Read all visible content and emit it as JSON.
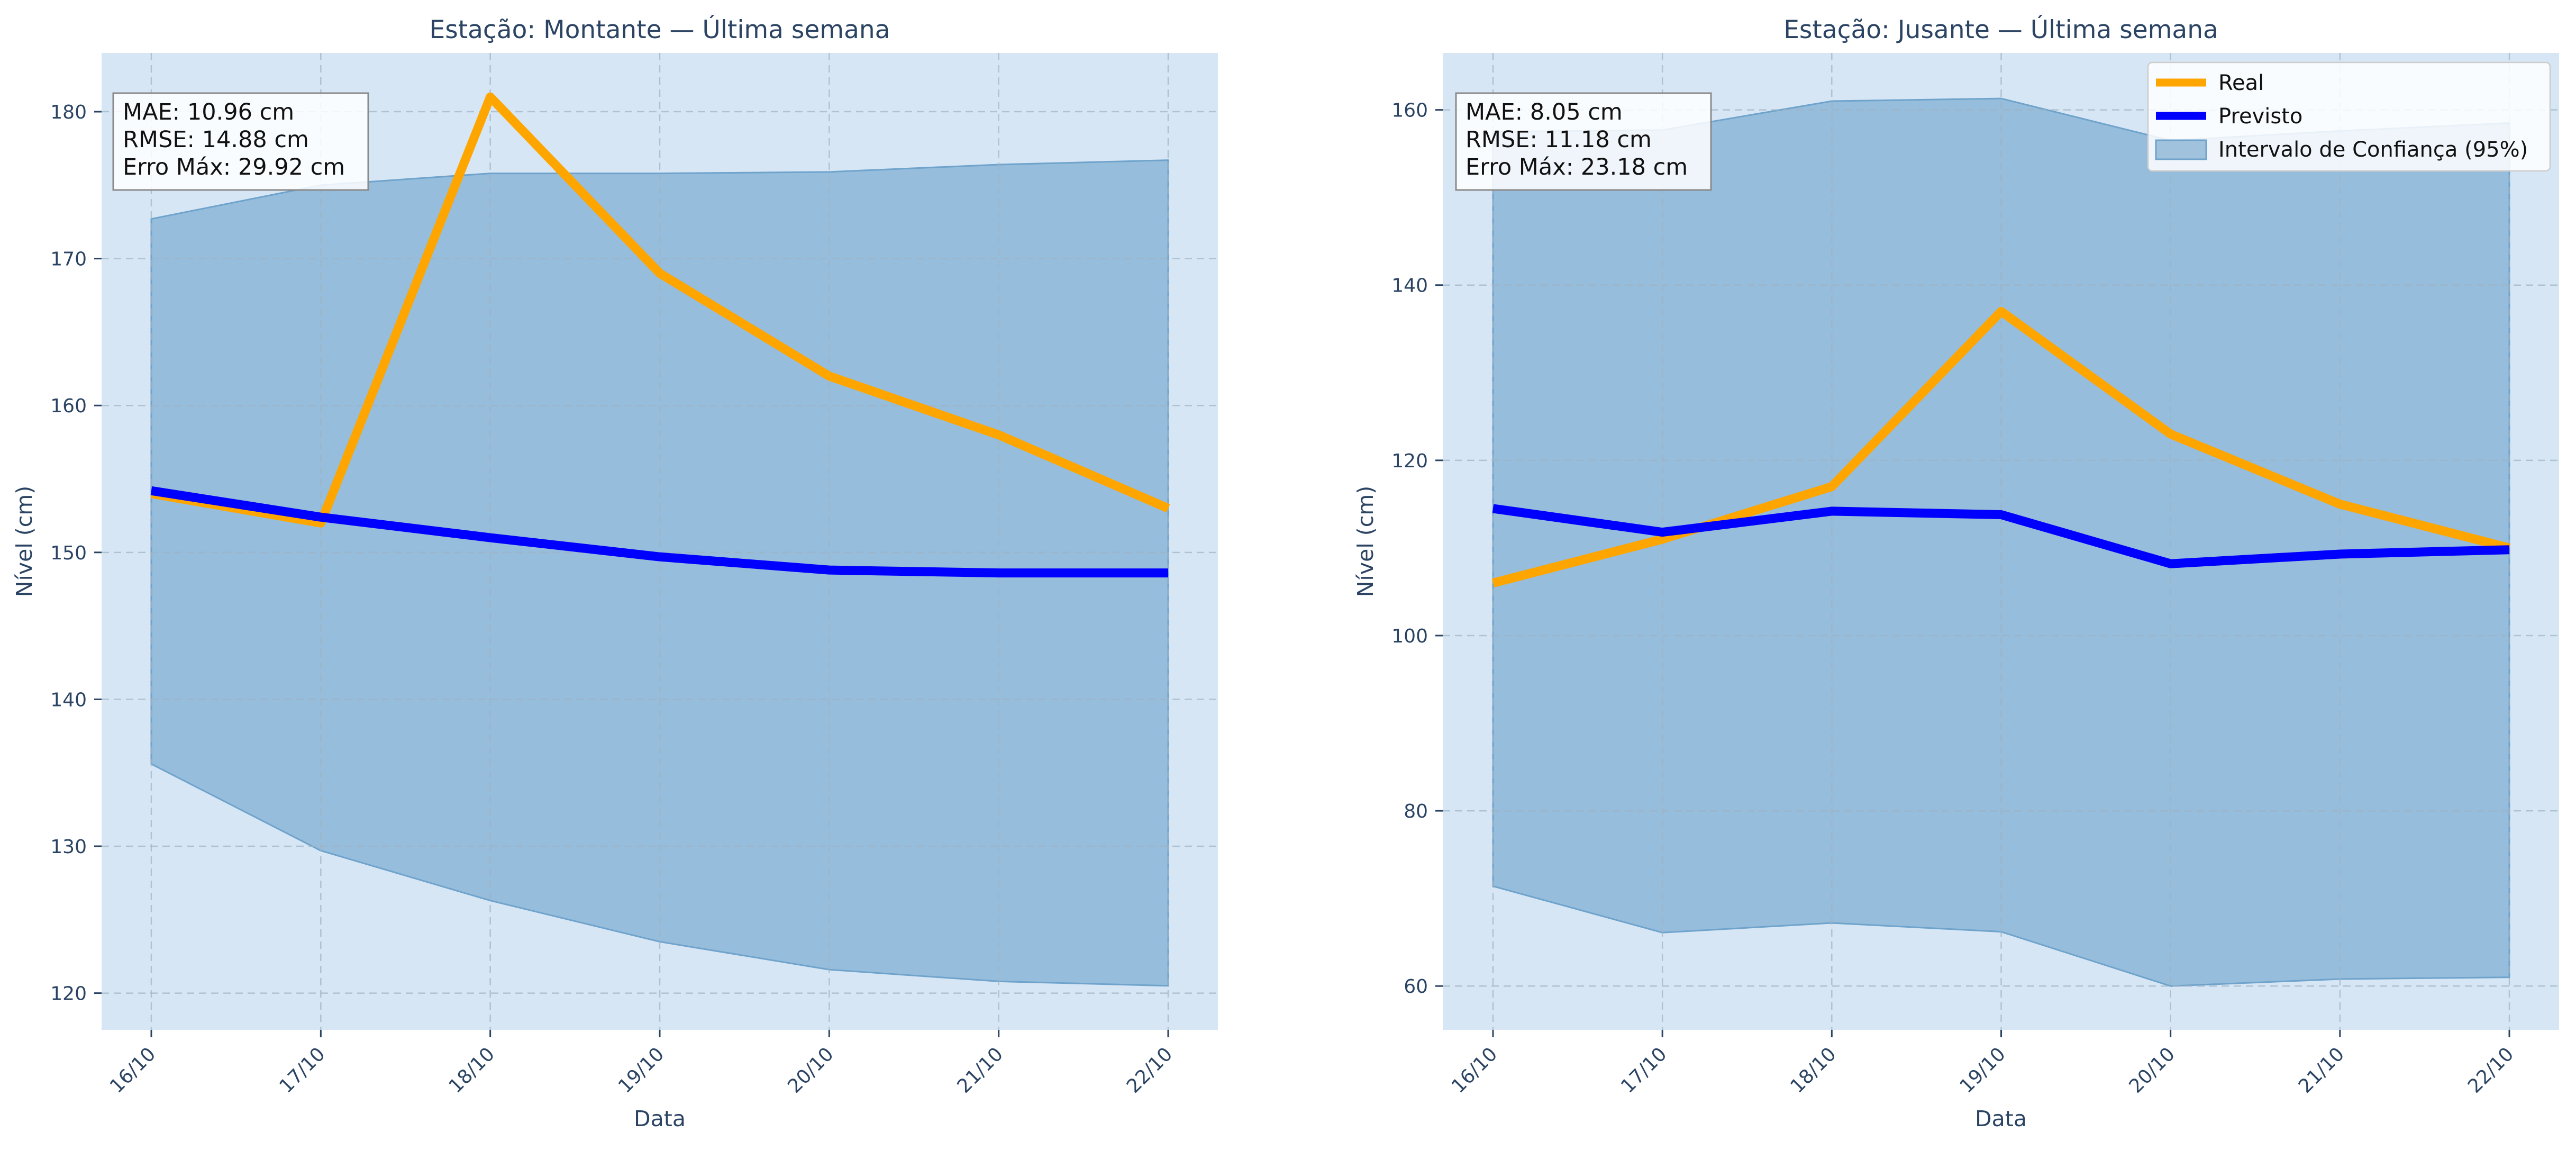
{
  "chart_data": [
    {
      "type": "line",
      "title": "Estação: Montante — Última semana",
      "xlabel": "Data",
      "ylabel": "Nível (cm)",
      "categories": [
        "16/10",
        "17/10",
        "18/10",
        "19/10",
        "20/10",
        "21/10",
        "22/10"
      ],
      "ylim": [
        117.5,
        184
      ],
      "yticks": [
        "120",
        "130",
        "140",
        "150",
        "160",
        "170",
        "180"
      ],
      "grid": true,
      "series": [
        {
          "name": "Real",
          "color": "#ffa500",
          "values": [
            154,
            152,
            181,
            169,
            162,
            158,
            153
          ]
        },
        {
          "name": "Previsto",
          "color": "#0000ff",
          "values": [
            154.2,
            152.4,
            151.0,
            149.7,
            148.8,
            148.6,
            148.6
          ]
        }
      ],
      "confidence_interval": {
        "name": "Intervalo de Confiança (95%)",
        "color": "#6fa3cc",
        "lower": [
          135.6,
          129.7,
          126.3,
          123.5,
          121.6,
          120.8,
          120.5
        ],
        "upper": [
          172.7,
          175.0,
          175.8,
          175.8,
          175.9,
          176.4,
          176.7
        ]
      },
      "stats": [
        "MAE: 10.96 cm",
        "RMSE: 14.88 cm",
        "Erro Máx: 29.92 cm"
      ],
      "legend": "none"
    },
    {
      "type": "line",
      "title": "Estação: Jusante — Última semana",
      "xlabel": "Data",
      "ylabel": "Nível (cm)",
      "categories": [
        "16/10",
        "17/10",
        "18/10",
        "19/10",
        "20/10",
        "21/10",
        "22/10"
      ],
      "ylim": [
        55,
        166.5
      ],
      "yticks": [
        "60",
        "80",
        "100",
        "120",
        "140",
        "160"
      ],
      "grid": true,
      "series": [
        {
          "name": "Real",
          "color": "#ffa500",
          "values": [
            106,
            111,
            117,
            137,
            123,
            115,
            110
          ]
        },
        {
          "name": "Previsto",
          "color": "#0000ff",
          "values": [
            114.5,
            111.8,
            114.2,
            113.8,
            108.2,
            109.3,
            109.8
          ]
        }
      ],
      "confidence_interval": {
        "name": "Intervalo de Confiança (95%)",
        "color": "#6fa3cc",
        "lower": [
          71.4,
          66.1,
          67.2,
          66.2,
          60.0,
          60.8,
          61.0
        ],
        "upper": [
          157.5,
          157.7,
          161.0,
          161.3,
          156.5,
          157.6,
          158.5
        ]
      },
      "stats": [
        "MAE: 8.05 cm",
        "RMSE: 11.18 cm",
        "Erro Máx: 23.18 cm"
      ],
      "legend": "top-right",
      "legend_entries": [
        "Real",
        "Previsto",
        "Intervalo de Confiança (95%)"
      ]
    }
  ]
}
